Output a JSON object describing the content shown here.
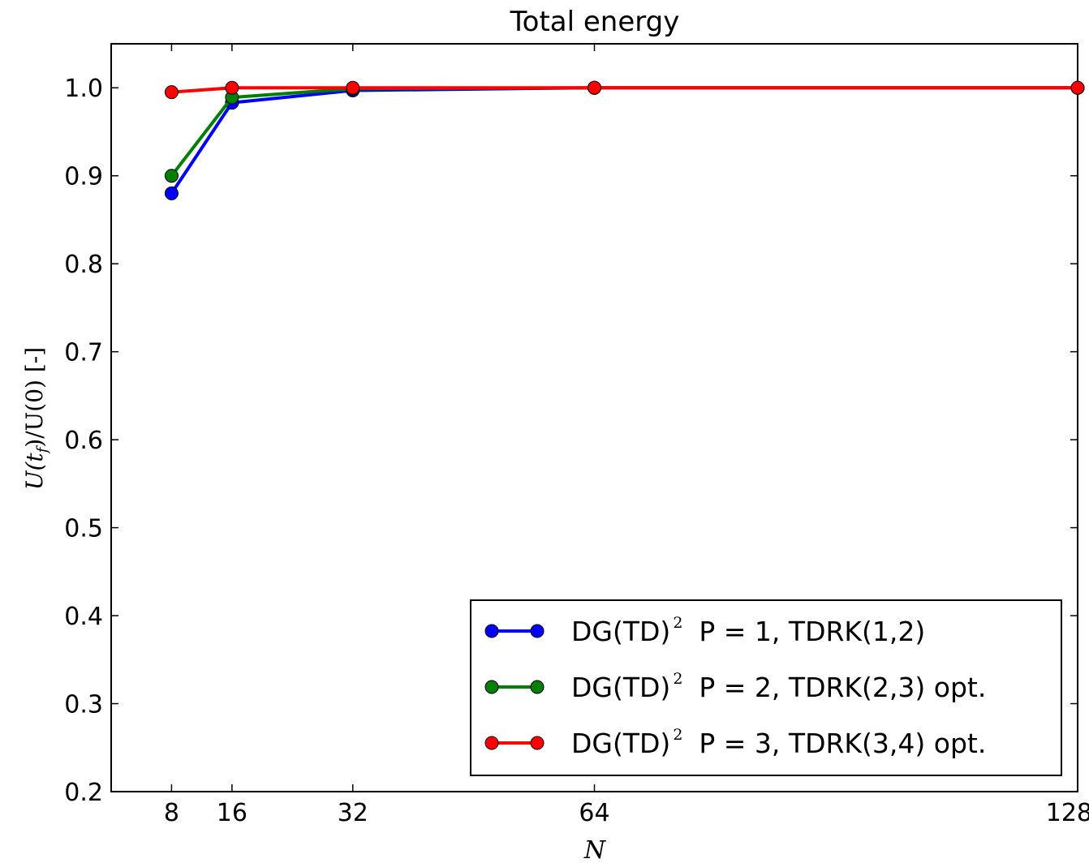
{
  "chart_data": {
    "type": "line",
    "title": "Total energy",
    "xlabel": "N",
    "ylabel": {
      "main": "U(t",
      "sub": "f",
      "rest": ")/U(0) [-]"
    },
    "x": [
      8,
      16,
      32,
      64,
      128
    ],
    "xticks": [
      "8",
      "16",
      "32",
      "64",
      "128"
    ],
    "xlim": [
      0,
      128
    ],
    "ylim": [
      0.2,
      1.05
    ],
    "yticks": [
      "0.2",
      "0.3",
      "0.4",
      "0.5",
      "0.6",
      "0.7",
      "0.8",
      "0.9",
      "1.0"
    ],
    "legend_position": "lower-right",
    "series": [
      {
        "name": "P = 1, TDRK(1,2)",
        "prefix": "DG(TD)",
        "sup": "2",
        "color": "#0000ff",
        "values": [
          0.88,
          0.983,
          0.997,
          1.0,
          1.0
        ]
      },
      {
        "name": "P = 2, TDRK(2,3) opt.",
        "prefix": "DG(TD)",
        "sup": "2",
        "color": "#007f00",
        "values": [
          0.9,
          0.989,
          0.999,
          1.0,
          1.0
        ]
      },
      {
        "name": "P = 3, TDRK(3,4) opt.",
        "prefix": "DG(TD)",
        "sup": "2",
        "color": "#ff0000",
        "values": [
          0.995,
          1.0,
          1.0,
          1.0,
          1.0
        ]
      }
    ]
  }
}
